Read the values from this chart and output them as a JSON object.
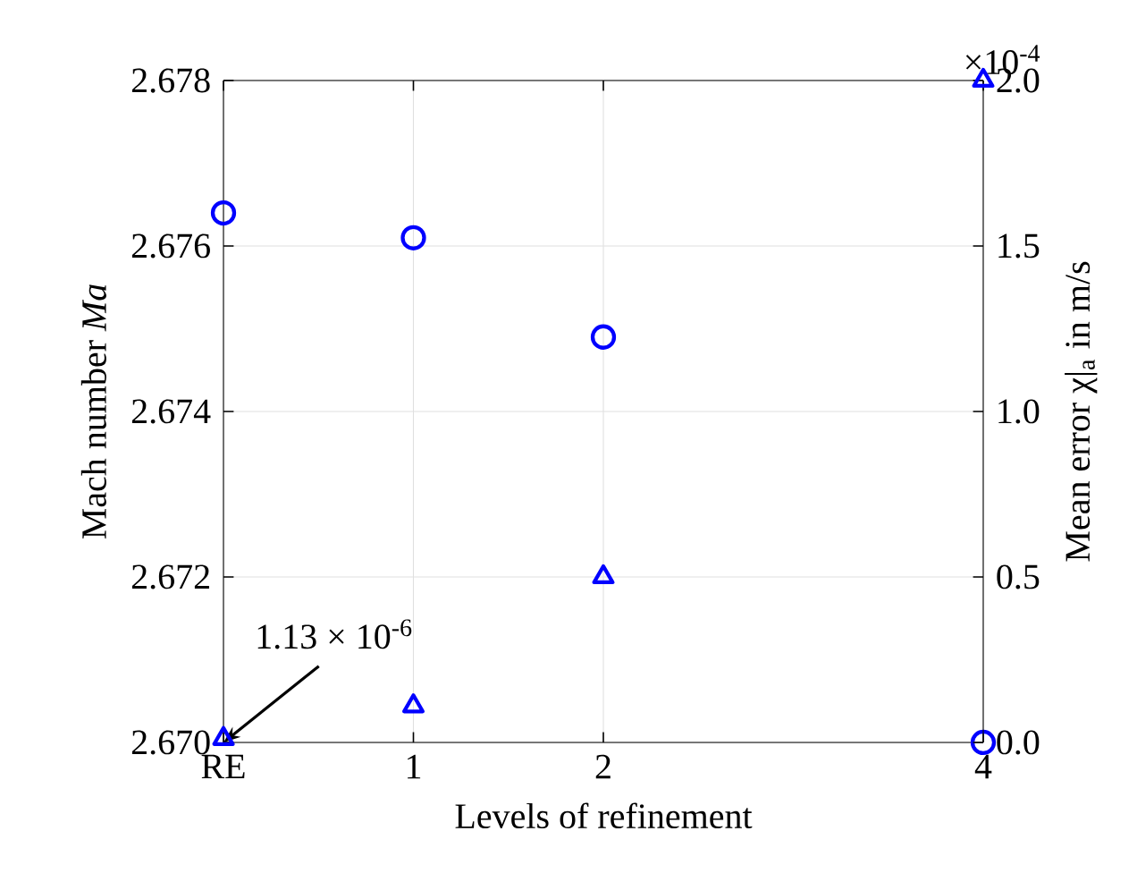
{
  "chart_data": {
    "type": "scatter",
    "xlabel": "Levels of refinement",
    "ylabel": "Mach number *Ma*",
    "y2label": "Mean error χ|$_{a}$ in m/s",
    "x": [
      0,
      1,
      2,
      4
    ],
    "xlim": [
      0,
      4
    ],
    "xticks": [
      {
        "value": 0,
        "label": "RE"
      },
      1,
      2,
      4
    ],
    "ylim": [
      2.67,
      2.678
    ],
    "yticks": [
      {
        "value": 2.67,
        "label": "2.670"
      },
      {
        "value": 2.672,
        "label": "2.672"
      },
      {
        "value": 2.674,
        "label": "2.674"
      },
      {
        "value": 2.676,
        "label": "2.676"
      },
      {
        "value": 2.678,
        "label": "2.678"
      }
    ],
    "y2lim": [
      0,
      2.0
    ],
    "y2ticks": [
      {
        "value": 0,
        "label": "0.0"
      },
      {
        "value": 0.5,
        "label": "0.5"
      },
      {
        "value": 1.0,
        "label": "1.0"
      },
      {
        "value": 1.5,
        "label": "1.5"
      },
      {
        "value": 2.0,
        "label": "2.0"
      }
    ],
    "series": [
      {
        "color": "#0000ff",
        "marker": "circle",
        "values": [
          2.6764,
          2.6761,
          2.6749,
          2.67
        ]
      },
      {
        "color": "#0000ff",
        "marker": "triangle",
        "axis": "y2",
        "values": [
          0.0113,
          0.11,
          0.5,
          2.0
        ]
      }
    ],
    "annotations": [
      "×10$^{-4}$",
      {
        "text": "1.13 × 10$^{-6}$",
        "x": 0,
        "y": 2.67
      }
    ],
    "grid": true
  }
}
